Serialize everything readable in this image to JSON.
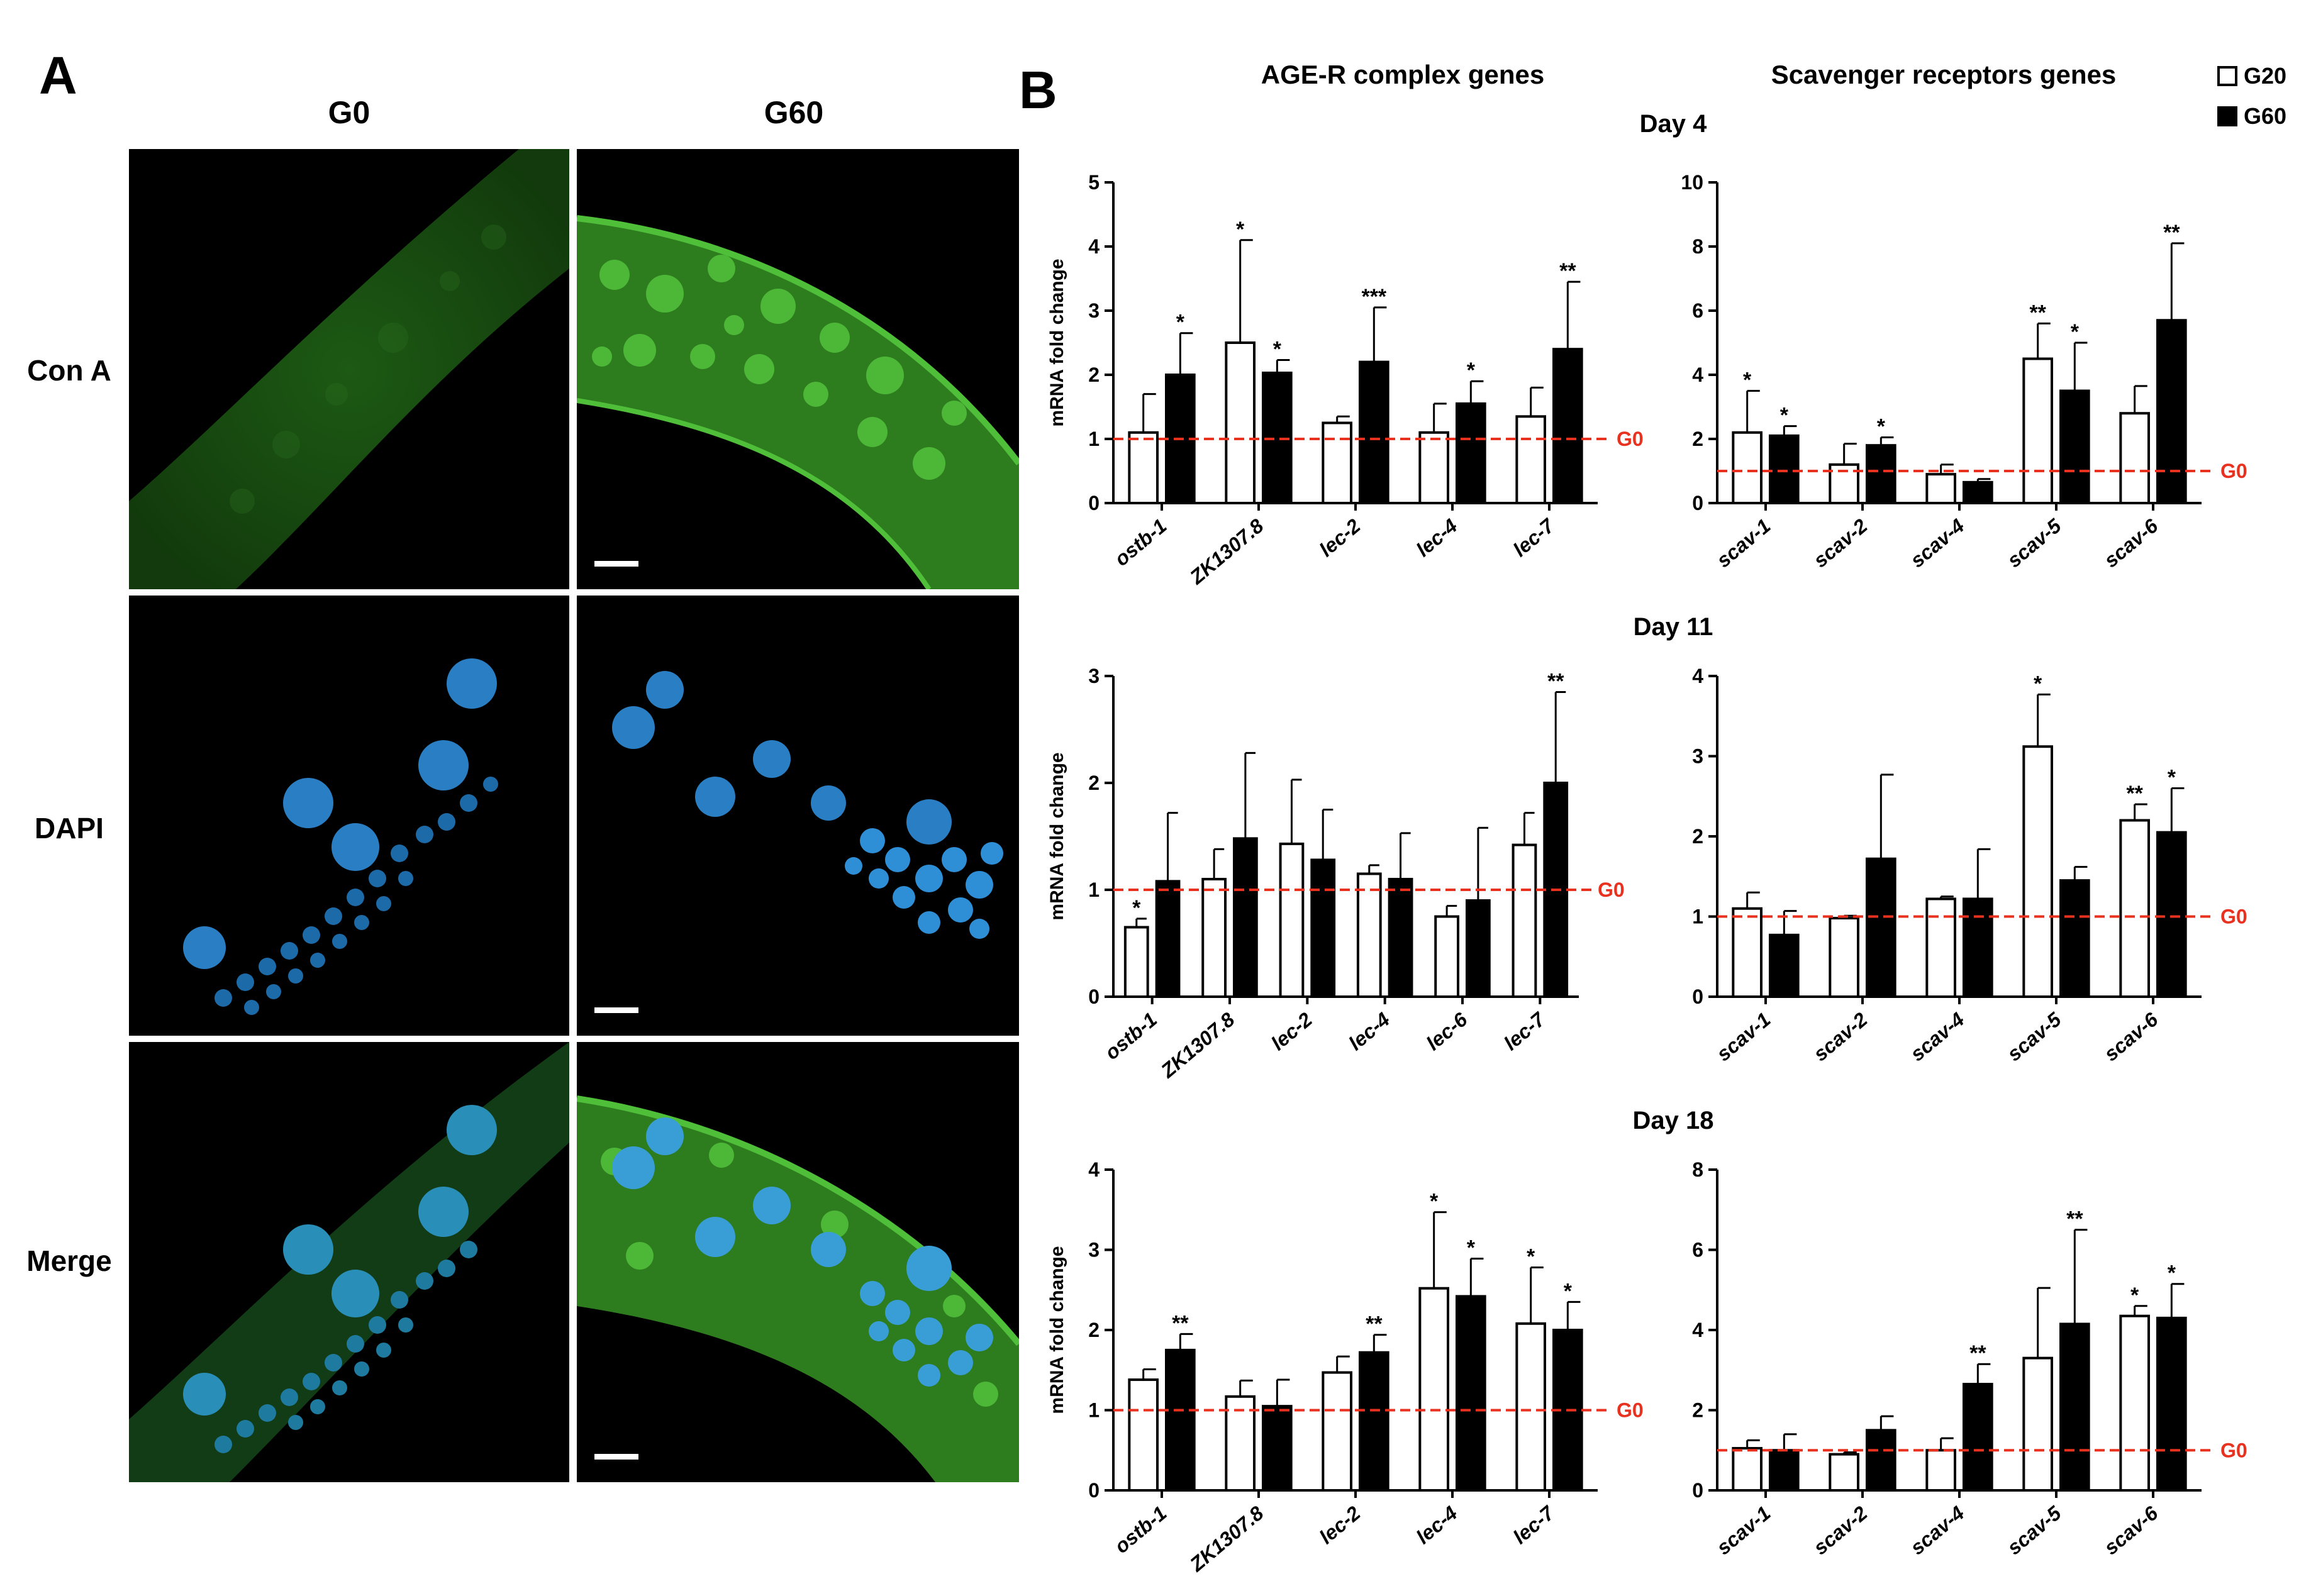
{
  "panel_a": {
    "letter": "A",
    "columns": [
      "G0",
      "G60"
    ],
    "rows": [
      "Con A",
      "DAPI",
      "Merge"
    ]
  },
  "panel_b": {
    "letter": "B",
    "section_titles": [
      "AGE-R complex genes",
      "Scavenger receptors genes"
    ],
    "days": [
      "Day 4",
      "Day 11",
      "Day 18"
    ],
    "legend": [
      {
        "label": "G20",
        "color": "#ffffff"
      },
      {
        "label": "G60",
        "color": "#000000"
      }
    ],
    "reference_label": "G0",
    "reference_color": "#e8321f",
    "y_label": "mRNA fold change"
  },
  "chart_data": [
    {
      "type": "bar",
      "day": "Day 4",
      "group": "AGE-R complex genes",
      "ylabel": "mRNA fold change",
      "ylim": [
        0,
        5
      ],
      "yticks": [
        0,
        1,
        2,
        3,
        4,
        5
      ],
      "reference_line": 1,
      "reference_label": "G0",
      "categories": [
        "ostb-1",
        "ZK1307.8",
        "lec-2",
        "lec-4",
        "lec-7"
      ],
      "series": [
        {
          "name": "G20",
          "values": [
            1.1,
            2.5,
            1.25,
            1.1,
            1.35
          ],
          "err": [
            0.6,
            1.6,
            0.1,
            0.45,
            0.45
          ],
          "sig": [
            "",
            "*",
            "",
            "",
            ""
          ]
        },
        {
          "name": "G60",
          "values": [
            2.0,
            2.03,
            2.2,
            1.55,
            2.4
          ],
          "err": [
            0.65,
            0.2,
            0.85,
            0.35,
            1.05
          ],
          "sig": [
            "*",
            "*",
            "***",
            "*",
            "**"
          ]
        }
      ]
    },
    {
      "type": "bar",
      "day": "Day 4",
      "group": "Scavenger receptors genes",
      "ylim": [
        0,
        10
      ],
      "yticks": [
        0,
        2,
        4,
        6,
        8,
        10
      ],
      "reference_line": 1,
      "reference_label": "G0",
      "categories": [
        "scav-1",
        "scav-2",
        "scav-4",
        "scav-5",
        "scav-6"
      ],
      "series": [
        {
          "name": "G20",
          "values": [
            2.2,
            1.2,
            0.9,
            4.5,
            2.8
          ],
          "err": [
            1.3,
            0.65,
            0.3,
            1.1,
            0.85
          ],
          "sig": [
            "*",
            "",
            "",
            "**",
            ""
          ]
        },
        {
          "name": "G60",
          "values": [
            2.1,
            1.8,
            0.65,
            3.5,
            5.7
          ],
          "err": [
            0.3,
            0.25,
            0.1,
            1.5,
            2.4
          ],
          "sig": [
            "*",
            "*",
            "",
            "*",
            "**"
          ]
        }
      ]
    },
    {
      "type": "bar",
      "day": "Day 11",
      "group": "AGE-R complex genes",
      "ylabel": "mRNA fold change",
      "ylim": [
        0,
        3
      ],
      "yticks": [
        0,
        1,
        2,
        3
      ],
      "reference_line": 1,
      "reference_label": "G0",
      "categories": [
        "ostb-1",
        "ZK1307.8",
        "lec-2",
        "lec-4",
        "lec-6",
        "lec-7"
      ],
      "series": [
        {
          "name": "G20",
          "values": [
            0.65,
            1.1,
            1.43,
            1.15,
            0.75,
            1.42
          ],
          "err": [
            0.08,
            0.28,
            0.6,
            0.08,
            0.1,
            0.3
          ],
          "sig": [
            "*",
            "",
            "",
            "",
            "",
            ""
          ]
        },
        {
          "name": "G60",
          "values": [
            1.08,
            1.48,
            1.28,
            1.1,
            0.9,
            2.0
          ],
          "err": [
            0.64,
            0.8,
            0.47,
            0.43,
            0.68,
            0.85
          ],
          "sig": [
            "",
            "",
            "",
            "",
            "",
            "**"
          ]
        }
      ]
    },
    {
      "type": "bar",
      "day": "Day 11",
      "group": "Scavenger receptors genes",
      "ylim": [
        0,
        4
      ],
      "yticks": [
        0,
        1,
        2,
        3,
        4
      ],
      "reference_line": 1,
      "reference_label": "G0",
      "categories": [
        "scav-1",
        "scav-2",
        "scav-4",
        "scav-5",
        "scav-6"
      ],
      "series": [
        {
          "name": "G20",
          "values": [
            1.1,
            0.98,
            1.22,
            3.12,
            2.2
          ],
          "err": [
            0.2,
            0.03,
            0.03,
            0.65,
            0.2
          ],
          "sig": [
            "",
            "",
            "",
            "*",
            "**"
          ]
        },
        {
          "name": "G60",
          "values": [
            0.77,
            1.72,
            1.22,
            1.45,
            2.05
          ],
          "err": [
            0.3,
            1.05,
            0.62,
            0.17,
            0.55
          ],
          "sig": [
            "",
            "",
            "",
            "",
            "*"
          ]
        }
      ]
    },
    {
      "type": "bar",
      "day": "Day 18",
      "group": "AGE-R complex genes",
      "ylabel": "mRNA fold change",
      "ylim": [
        0,
        4
      ],
      "yticks": [
        0,
        1,
        2,
        3,
        4
      ],
      "reference_line": 1,
      "reference_label": "G0",
      "categories": [
        "ostb-1",
        "ZK1307.8",
        "lec-2",
        "lec-4",
        "lec-7"
      ],
      "series": [
        {
          "name": "G20",
          "values": [
            1.38,
            1.17,
            1.47,
            2.52,
            2.08
          ],
          "err": [
            0.13,
            0.2,
            0.2,
            0.95,
            0.7
          ],
          "sig": [
            "",
            "",
            "",
            "*",
            "*"
          ]
        },
        {
          "name": "G60",
          "values": [
            1.75,
            1.05,
            1.72,
            2.42,
            2.0
          ],
          "err": [
            0.2,
            0.33,
            0.22,
            0.47,
            0.35
          ],
          "sig": [
            "**",
            "",
            "**",
            "*",
            "*"
          ]
        }
      ]
    },
    {
      "type": "bar",
      "day": "Day 18",
      "group": "Scavenger receptors genes",
      "ylim": [
        0,
        8
      ],
      "yticks": [
        0,
        2,
        4,
        6,
        8
      ],
      "reference_line": 1,
      "reference_label": "G0",
      "categories": [
        "scav-1",
        "scav-2",
        "scav-4",
        "scav-5",
        "scav-6"
      ],
      "series": [
        {
          "name": "G20",
          "values": [
            1.05,
            0.9,
            1.0,
            3.3,
            4.35
          ],
          "err": [
            0.2,
            0.05,
            0.3,
            1.75,
            0.25
          ],
          "sig": [
            "",
            "",
            "",
            "",
            "*"
          ]
        },
        {
          "name": "G60",
          "values": [
            1.0,
            1.5,
            2.65,
            4.15,
            4.3
          ],
          "err": [
            0.4,
            0.35,
            0.5,
            2.35,
            0.85
          ],
          "sig": [
            "",
            "",
            "**",
            "**",
            "*"
          ]
        }
      ]
    }
  ]
}
